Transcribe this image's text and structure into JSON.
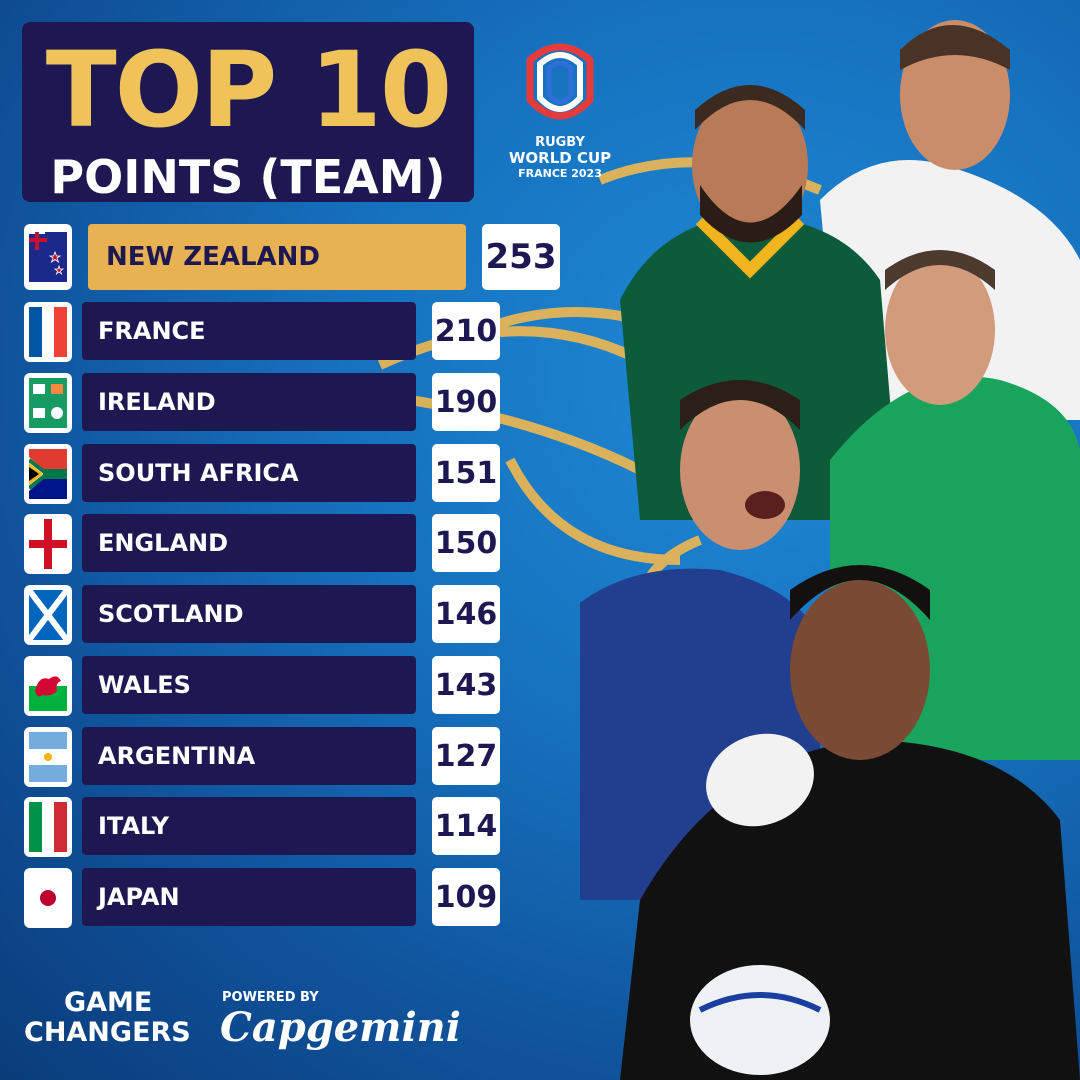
{
  "title": {
    "line1": "TOP 10",
    "line2": "POINTS (TEAM)"
  },
  "logo": {
    "line1": "RUGBY",
    "line2": "WORLD CUP",
    "line3": "FRANCE 2023"
  },
  "colors": {
    "navy": "#1d1852",
    "gold": "#e8b253",
    "blue": "#1670bd"
  },
  "rankings": [
    {
      "team": "NEW ZEALAND",
      "points": "253",
      "flag": "new-zealand-flag"
    },
    {
      "team": "FRANCE",
      "points": "210",
      "flag": "france-flag"
    },
    {
      "team": "IRELAND",
      "points": "190",
      "flag": "ireland-flag"
    },
    {
      "team": "SOUTH AFRICA",
      "points": "151",
      "flag": "south-africa-flag"
    },
    {
      "team": "ENGLAND",
      "points": "150",
      "flag": "england-flag"
    },
    {
      "team": "SCOTLAND",
      "points": "146",
      "flag": "scotland-flag"
    },
    {
      "team": "WALES",
      "points": "143",
      "flag": "wales-flag"
    },
    {
      "team": "ARGENTINA",
      "points": "127",
      "flag": "argentina-flag"
    },
    {
      "team": "ITALY",
      "points": "114",
      "flag": "italy-flag"
    },
    {
      "team": "JAPAN",
      "points": "109",
      "flag": "japan-flag"
    }
  ],
  "footer": {
    "brand_line1": "GAME",
    "brand_line2": "CHANGERS",
    "powered_by": "POWERED BY",
    "sponsor": "Capgemini"
  }
}
